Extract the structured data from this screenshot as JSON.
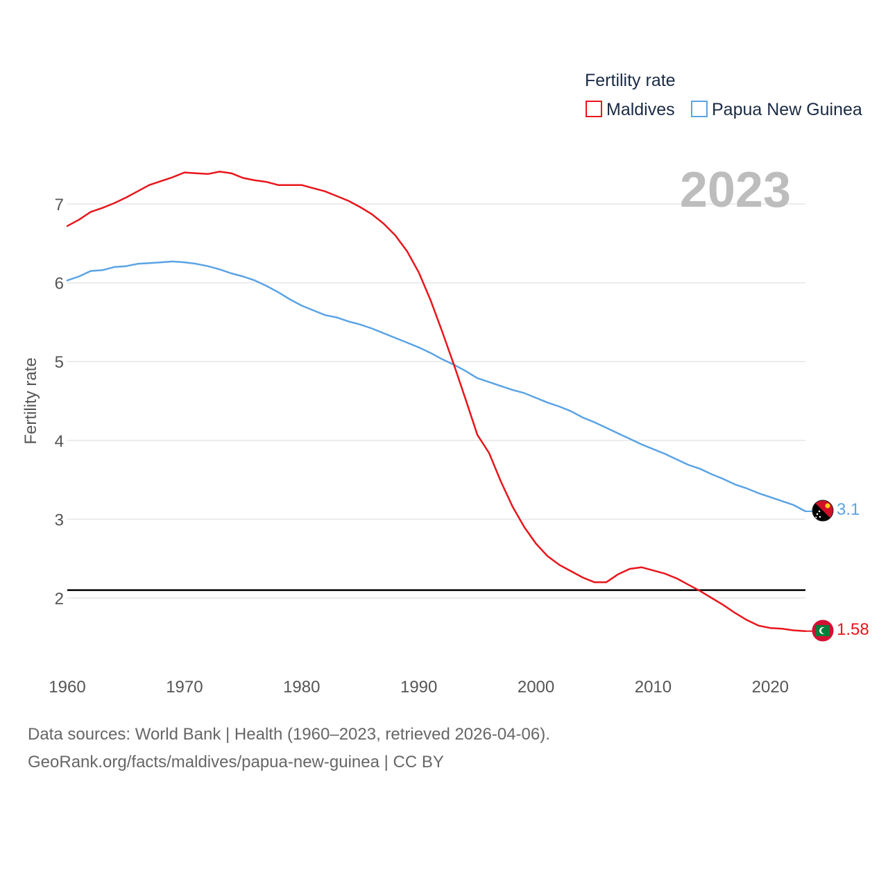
{
  "chart_data": {
    "type": "line",
    "title": "",
    "legend_title": "Fertility rate",
    "ylabel": "Fertility rate",
    "xlabel": "",
    "year_label": "2023",
    "xlim": [
      1960,
      2023
    ],
    "ylim": [
      1.2,
      7.7
    ],
    "x_ticks": [
      1960,
      1970,
      1980,
      1990,
      2000,
      2010,
      2020
    ],
    "y_ticks": [
      2,
      3,
      4,
      5,
      6,
      7
    ],
    "reference_line": 2.1,
    "x": [
      1960,
      1961,
      1962,
      1963,
      1964,
      1965,
      1966,
      1967,
      1968,
      1969,
      1970,
      1971,
      1972,
      1973,
      1974,
      1975,
      1976,
      1977,
      1978,
      1979,
      1980,
      1981,
      1982,
      1983,
      1984,
      1985,
      1986,
      1987,
      1988,
      1989,
      1990,
      1991,
      1992,
      1993,
      1994,
      1995,
      1996,
      1997,
      1998,
      1999,
      2000,
      2001,
      2002,
      2003,
      2004,
      2005,
      2006,
      2007,
      2008,
      2009,
      2010,
      2011,
      2012,
      2013,
      2014,
      2015,
      2016,
      2017,
      2018,
      2019,
      2020,
      2021,
      2022,
      2023
    ],
    "series": [
      {
        "name": "Maldives",
        "color": "#e8151b",
        "end_label": "1.58",
        "values": [
          6.72,
          6.8,
          6.9,
          6.95,
          7.01,
          7.08,
          7.16,
          7.24,
          7.29,
          7.34,
          7.4,
          7.39,
          7.38,
          7.41,
          7.39,
          7.33,
          7.3,
          7.28,
          7.24,
          7.24,
          7.24,
          7.2,
          7.16,
          7.1,
          7.04,
          6.96,
          6.87,
          6.75,
          6.6,
          6.4,
          6.13,
          5.78,
          5.38,
          4.96,
          4.52,
          4.07,
          3.84,
          3.48,
          3.16,
          2.9,
          2.69,
          2.53,
          2.42,
          2.34,
          2.26,
          2.2,
          2.2,
          2.3,
          2.37,
          2.39,
          2.35,
          2.31,
          2.25,
          2.17,
          2.09,
          2.0,
          1.91,
          1.81,
          1.72,
          1.65,
          1.62,
          1.61,
          1.59,
          1.58
        ]
      },
      {
        "name": "Papua New Guinea",
        "color": "#5aa3e4",
        "end_label": "3.1",
        "values": [
          6.03,
          6.08,
          6.15,
          6.16,
          6.2,
          6.21,
          6.24,
          6.25,
          6.26,
          6.27,
          6.26,
          6.24,
          6.21,
          6.17,
          6.12,
          6.08,
          6.03,
          5.96,
          5.88,
          5.79,
          5.71,
          5.65,
          5.59,
          5.56,
          5.51,
          5.47,
          5.42,
          5.36,
          5.3,
          5.24,
          5.18,
          5.11,
          5.03,
          4.96,
          4.88,
          4.79,
          4.74,
          4.69,
          4.64,
          4.6,
          4.54,
          4.48,
          4.43,
          4.37,
          4.29,
          4.23,
          4.16,
          4.09,
          4.02,
          3.95,
          3.89,
          3.83,
          3.76,
          3.69,
          3.64,
          3.57,
          3.51,
          3.44,
          3.39,
          3.33,
          3.28,
          3.23,
          3.18,
          3.1
        ]
      }
    ]
  },
  "footer": {
    "line1": "Data sources: World Bank | Health (1960–2023, retrieved 2026-04-06).",
    "line2": "GeoRank.org/facts/maldives/papua-new-guinea | CC BY"
  }
}
